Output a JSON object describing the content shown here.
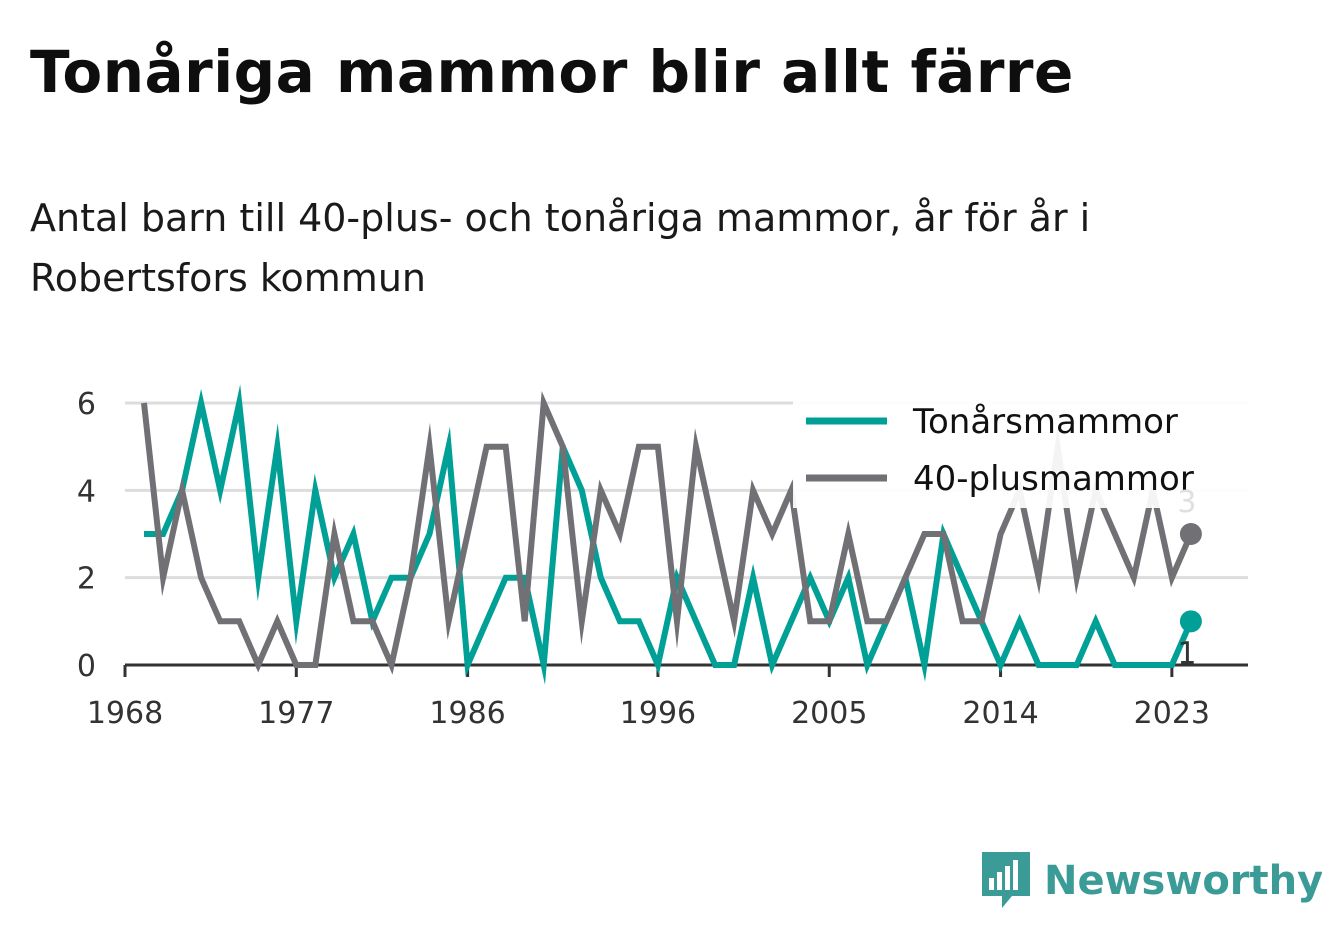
{
  "title": "Tonåriga mammor blir allt färre",
  "subtitle": "Antal barn till 40-plus- och tonåriga mammor, år för år i Robertsfors kommun",
  "brand": {
    "name": "Newsworthy",
    "icon": "newsworthy-logo-icon",
    "color": "#3b9b96"
  },
  "chart_data": {
    "type": "line",
    "x": [
      1969,
      1970,
      1971,
      1972,
      1973,
      1974,
      1975,
      1976,
      1977,
      1978,
      1979,
      1980,
      1981,
      1982,
      1983,
      1984,
      1985,
      1986,
      1987,
      1988,
      1989,
      1990,
      1991,
      1992,
      1993,
      1994,
      1995,
      1996,
      1997,
      1998,
      1999,
      2000,
      2001,
      2002,
      2003,
      2004,
      2005,
      2006,
      2007,
      2008,
      2009,
      2010,
      2011,
      2012,
      2013,
      2014,
      2015,
      2016,
      2017,
      2018,
      2019,
      2020,
      2021,
      2022,
      2023,
      2024
    ],
    "series": [
      {
        "name": "Tonårsmammor",
        "color": "#00a096",
        "values": [
          3,
          3,
          4,
          6,
          4,
          6,
          2,
          5,
          1,
          4,
          2,
          3,
          1,
          2,
          2,
          3,
          5,
          0,
          1,
          2,
          2,
          0,
          5,
          4,
          2,
          1,
          1,
          0,
          2,
          1,
          0,
          0,
          2,
          0,
          1,
          2,
          1,
          2,
          0,
          1,
          2,
          0,
          3,
          2,
          1,
          0,
          1,
          0,
          0,
          0,
          1,
          0,
          0,
          0,
          0,
          1
        ]
      },
      {
        "name": "40-plusmammor",
        "color": "#717075",
        "values": [
          6,
          2,
          4,
          2,
          1,
          1,
          0,
          1,
          0,
          0,
          3,
          1,
          1,
          0,
          2,
          5,
          1,
          3,
          5,
          5,
          1,
          6,
          5,
          1,
          4,
          3,
          5,
          5,
          1,
          5,
          3,
          1,
          4,
          3,
          4,
          1,
          1,
          3,
          1,
          1,
          2,
          3,
          3,
          1,
          1,
          3,
          4,
          2,
          5,
          2,
          4,
          3,
          2,
          4,
          2,
          3
        ]
      }
    ],
    "end_labels": [
      "3",
      "1"
    ],
    "xticks": [
      "1968",
      "1977",
      "1986",
      "1996",
      "2005",
      "2014",
      "2023"
    ],
    "yticks": [
      "0",
      "2",
      "4",
      "6"
    ],
    "xlim": [
      1968,
      2027
    ],
    "ylim": [
      0,
      6
    ],
    "grid": true,
    "legend_position": "top-right"
  }
}
